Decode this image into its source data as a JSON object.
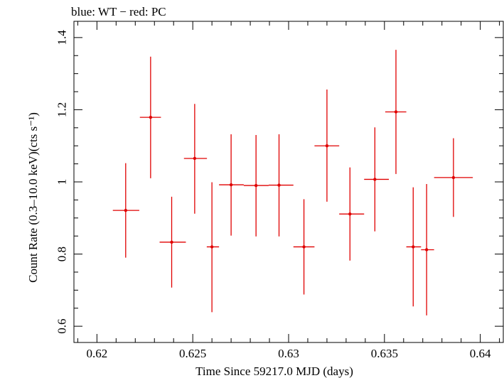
{
  "chart_data": {
    "type": "scatter",
    "title": "blue: WT − red: PC",
    "xlabel": "Time Since 59217.0 MJD (days)",
    "ylabel": "Count Rate (0.3–10.0 keV)(cts s⁻¹)",
    "xlim": [
      0.6188,
      0.6412
    ],
    "ylim": [
      0.555,
      1.445
    ],
    "x_ticks": [
      0.62,
      0.625,
      0.63,
      0.635,
      0.64
    ],
    "x_tick_labels": [
      "0.62",
      "0.625",
      "0.63",
      "0.635",
      "0.64"
    ],
    "y_ticks": [
      0.6,
      0.8,
      1.0,
      1.2,
      1.4
    ],
    "y_tick_labels": [
      "0.6",
      "0.8",
      "1",
      "1.2",
      "1.4"
    ],
    "grid": false,
    "series": [
      {
        "name": "PC",
        "color": "#e00000",
        "points": [
          {
            "x": 0.6215,
            "xlo": 0.62083,
            "xhi": 0.62221,
            "y": 0.921,
            "ylo": 0.79,
            "yhi": 1.052
          },
          {
            "x": 0.6228,
            "xlo": 0.62224,
            "xhi": 0.62334,
            "y": 1.179,
            "ylo": 1.01,
            "yhi": 1.347
          },
          {
            "x": 0.6239,
            "xlo": 0.62327,
            "xhi": 0.62464,
            "y": 0.833,
            "ylo": 0.707,
            "yhi": 0.959
          },
          {
            "x": 0.6251,
            "xlo": 0.62454,
            "xhi": 0.62574,
            "y": 1.065,
            "ylo": 0.912,
            "yhi": 1.216
          },
          {
            "x": 0.626,
            "xlo": 0.62573,
            "xhi": 0.62637,
            "y": 0.82,
            "ylo": 0.639,
            "yhi": 0.999
          },
          {
            "x": 0.627,
            "xlo": 0.62637,
            "xhi": 0.62766,
            "y": 0.992,
            "ylo": 0.851,
            "yhi": 1.132
          },
          {
            "x": 0.6283,
            "xlo": 0.62766,
            "xhi": 0.62896,
            "y": 0.99,
            "ylo": 0.849,
            "yhi": 1.13
          },
          {
            "x": 0.6295,
            "xlo": 0.62896,
            "xhi": 0.63025,
            "y": 0.991,
            "ylo": 0.849,
            "yhi": 1.132
          },
          {
            "x": 0.6308,
            "xlo": 0.63025,
            "xhi": 0.63135,
            "y": 0.82,
            "ylo": 0.688,
            "yhi": 0.952
          },
          {
            "x": 0.632,
            "xlo": 0.63135,
            "xhi": 0.63264,
            "y": 1.1,
            "ylo": 0.945,
            "yhi": 1.256
          },
          {
            "x": 0.6332,
            "xlo": 0.63264,
            "xhi": 0.63394,
            "y": 0.911,
            "ylo": 0.782,
            "yhi": 1.04
          },
          {
            "x": 0.6345,
            "xlo": 0.63394,
            "xhi": 0.63523,
            "y": 1.007,
            "ylo": 0.863,
            "yhi": 1.151
          },
          {
            "x": 0.6356,
            "xlo": 0.63504,
            "xhi": 0.63614,
            "y": 1.194,
            "ylo": 1.022,
            "yhi": 1.366
          },
          {
            "x": 0.6365,
            "xlo": 0.63614,
            "xhi": 0.63691,
            "y": 0.82,
            "ylo": 0.655,
            "yhi": 0.985
          },
          {
            "x": 0.6372,
            "xlo": 0.63691,
            "xhi": 0.63759,
            "y": 0.812,
            "ylo": 0.63,
            "yhi": 0.994
          },
          {
            "x": 0.6386,
            "xlo": 0.63759,
            "xhi": 0.63961,
            "y": 1.012,
            "ylo": 0.903,
            "yhi": 1.121
          }
        ]
      }
    ]
  }
}
